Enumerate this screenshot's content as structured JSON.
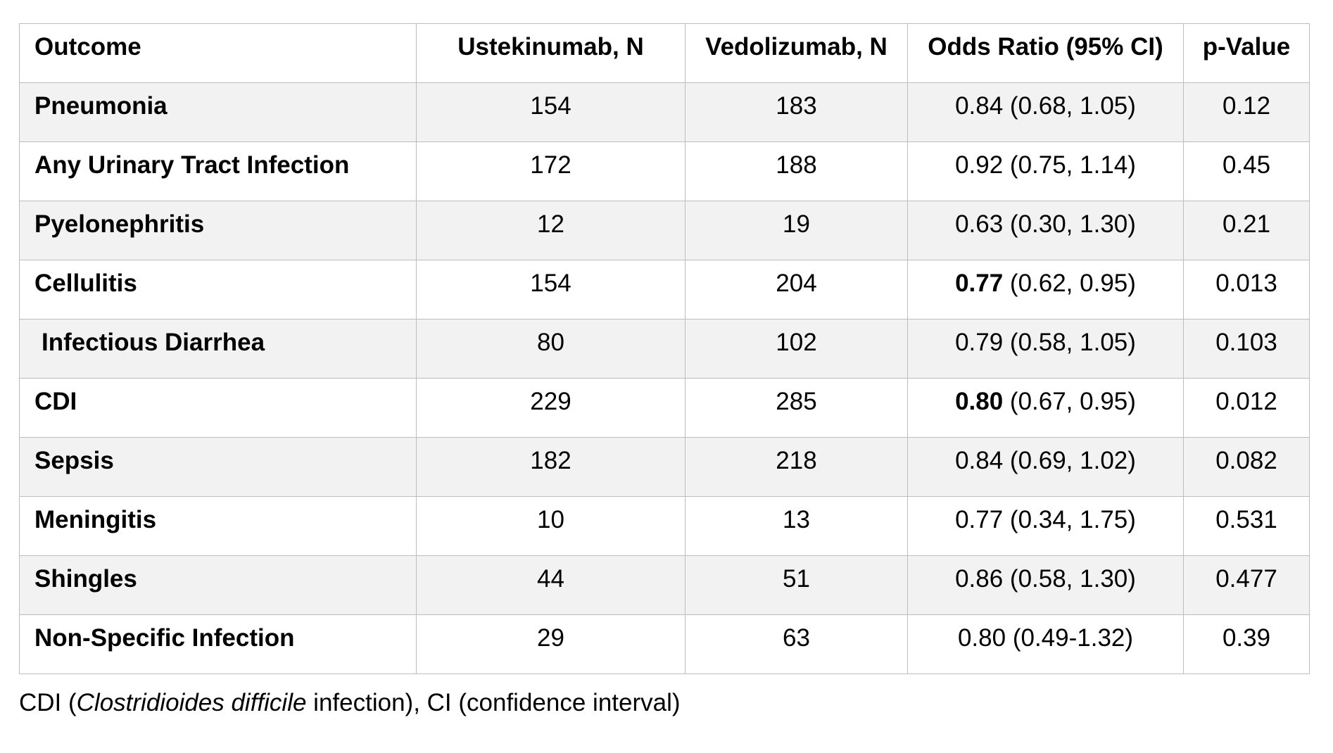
{
  "table": {
    "headers": [
      "Outcome",
      "Ustekinumab, N",
      "Vedolizumab, N",
      "Odds Ratio (95% CI)",
      "p-Value"
    ],
    "rows": [
      {
        "outcome": "Pneumonia",
        "ustekinumab": "154",
        "vedolizumab": "183",
        "or_point": "0.84",
        "or_ci": " (0.68, 1.05)",
        "p": "0.12"
      },
      {
        "outcome": "Any Urinary Tract Infection",
        "ustekinumab": "172",
        "vedolizumab": "188",
        "or_point": "0.92",
        "or_ci": " (0.75, 1.14)",
        "p": "0.45"
      },
      {
        "outcome": "Pyelonephritis",
        "ustekinumab": "12",
        "vedolizumab": "19",
        "or_point": "0.63",
        "or_ci": " (0.30, 1.30)",
        "p": "0.21"
      },
      {
        "outcome": "Cellulitis",
        "ustekinumab": "154",
        "vedolizumab": "204",
        "or_point": "0.77",
        "or_ci": " (0.62, 0.95)",
        "p": "0.013"
      },
      {
        "outcome": "Infectious Diarrhea",
        "ustekinumab": "80",
        "vedolizumab": "102",
        "or_point": "0.79",
        "or_ci": " (0.58, 1.05)",
        "p": "0.103"
      },
      {
        "outcome": "CDI",
        "ustekinumab": "229",
        "vedolizumab": "285",
        "or_point": "0.80",
        "or_ci": " (0.67, 0.95)",
        "p": "0.012"
      },
      {
        "outcome": "Sepsis",
        "ustekinumab": "182",
        "vedolizumab": "218",
        "or_point": "0.84",
        "or_ci": " (0.69, 1.02)",
        "p": "0.082"
      },
      {
        "outcome": "Meningitis",
        "ustekinumab": "10",
        "vedolizumab": "13",
        "or_point": "0.77",
        "or_ci": " (0.34, 1.75)",
        "p": "0.531"
      },
      {
        "outcome": "Shingles",
        "ustekinumab": "44",
        "vedolizumab": "51",
        "or_point": "0.86",
        "or_ci": " (0.58, 1.30)",
        "p": "0.477"
      },
      {
        "outcome": "Non-Specific Infection",
        "ustekinumab": "29",
        "vedolizumab": "63",
        "or_point": "0.80",
        "or_ci": " (0.49-1.32)",
        "p": "0.39"
      }
    ]
  },
  "footnote": {
    "part1": "CDI (",
    "italic": "Clostridioides difficile",
    "part2": " infection), CI (confidence interval)"
  }
}
